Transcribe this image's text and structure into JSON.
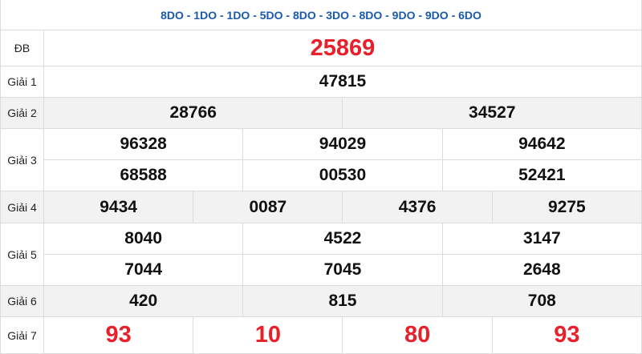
{
  "header": {
    "codes": "8DO - 1DO - 1DO - 5DO - 8DO - 3DO - 8DO - 9DO - 9DO - 6DO"
  },
  "prizes": {
    "db": {
      "label": "ĐB",
      "numbers": [
        "25869"
      ]
    },
    "g1": {
      "label": "Giải 1",
      "numbers": [
        "47815"
      ]
    },
    "g2": {
      "label": "Giải 2",
      "numbers": [
        "28766",
        "34527"
      ]
    },
    "g3": {
      "label": "Giải 3",
      "numbers": [
        "96328",
        "94029",
        "94642",
        "68588",
        "00530",
        "52421"
      ]
    },
    "g4": {
      "label": "Giải 4",
      "numbers": [
        "9434",
        "0087",
        "4376",
        "9275"
      ]
    },
    "g5": {
      "label": "Giải 5",
      "numbers": [
        "8040",
        "4522",
        "3147",
        "7044",
        "7045",
        "2648"
      ]
    },
    "g6": {
      "label": "Giải 6",
      "numbers": [
        "420",
        "815",
        "708"
      ]
    },
    "g7": {
      "label": "Giải 7",
      "numbers": [
        "93",
        "10",
        "80",
        "93"
      ]
    }
  },
  "colors": {
    "highlight": "#e8202a",
    "header": "#1a5aa8",
    "stripe": "#f2f2f2"
  }
}
